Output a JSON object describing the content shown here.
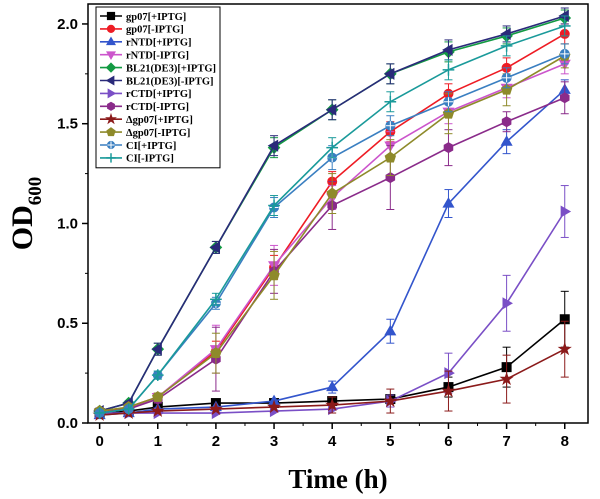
{
  "chart_data": {
    "type": "line",
    "xlabel": "Time (h)",
    "ylabel": "OD",
    "ylabel_subscript": "600",
    "xlim": [
      -0.2,
      8.4
    ],
    "ylim": [
      0,
      2.1
    ],
    "xticks": [
      0,
      1,
      2,
      3,
      4,
      5,
      6,
      7,
      8
    ],
    "yticks": [
      "0.0",
      "0.5",
      "1.0",
      "1.5",
      "2.0"
    ],
    "x": [
      0,
      0.5,
      1,
      2,
      3,
      4,
      5,
      6,
      7,
      8
    ],
    "legend_position": "top-left",
    "series": [
      {
        "name": "gp07[+IPTG]",
        "color": "#000000",
        "marker": "square",
        "values": [
          0.05,
          0.06,
          0.08,
          0.1,
          0.1,
          0.11,
          0.12,
          0.18,
          0.28,
          0.52
        ],
        "errors": [
          0,
          0,
          0,
          0,
          0,
          0,
          0,
          0.05,
          0.1,
          0.14
        ]
      },
      {
        "name": "gp07[-IPTG]",
        "color": "#ee1c24",
        "marker": "circle",
        "values": [
          0.05,
          0.08,
          0.13,
          0.36,
          0.78,
          1.21,
          1.46,
          1.65,
          1.78,
          1.95
        ],
        "errors": [
          0,
          0,
          0.02,
          0.05,
          0.06,
          0.05,
          0.05,
          0.05,
          0.05,
          0.05
        ]
      },
      {
        "name": "rNTD[+IPTG]",
        "color": "#3355cc",
        "marker": "triangle-up",
        "values": [
          0.04,
          0.05,
          0.07,
          0.08,
          0.11,
          0.18,
          0.46,
          1.1,
          1.41,
          1.67
        ],
        "errors": [
          0,
          0,
          0,
          0,
          0,
          0.03,
          0.06,
          0.07,
          0.06,
          0.05
        ]
      },
      {
        "name": "rNTD[-IPTG]",
        "color": "#cc55cc",
        "marker": "triangle-down",
        "values": [
          0.05,
          0.07,
          0.13,
          0.37,
          0.79,
          1.13,
          1.39,
          1.56,
          1.68,
          1.8
        ],
        "errors": [
          0,
          0,
          0.02,
          0.12,
          0.1,
          0.06,
          0.07,
          0.06,
          0.05,
          0.05
        ]
      },
      {
        "name": "BL21(DE3)[+IPTG]",
        "color": "#139a43",
        "marker": "diamond",
        "values": [
          0.06,
          0.1,
          0.37,
          0.88,
          1.38,
          1.57,
          1.75,
          1.86,
          1.94,
          2.03
        ],
        "errors": [
          0,
          0.01,
          0.03,
          0.03,
          0.05,
          0.05,
          0.05,
          0.05,
          0.04,
          0.04
        ]
      },
      {
        "name": "BL21(DE3)[-IPTG]",
        "color": "#2a2a7a",
        "marker": "triangle-left",
        "values": [
          0.06,
          0.1,
          0.37,
          0.88,
          1.39,
          1.57,
          1.75,
          1.87,
          1.95,
          2.04
        ],
        "errors": [
          0,
          0.01,
          0.03,
          0.03,
          0.05,
          0.05,
          0.05,
          0.05,
          0.04,
          0.04
        ]
      },
      {
        "name": "rCTD[+IPTG]",
        "color": "#7a4fc6",
        "marker": "triangle-right",
        "values": [
          0.05,
          0.05,
          0.05,
          0.05,
          0.06,
          0.07,
          0.11,
          0.25,
          0.6,
          1.06
        ],
        "errors": [
          0,
          0,
          0,
          0,
          0,
          0,
          0.03,
          0.1,
          0.14,
          0.13
        ]
      },
      {
        "name": "rCTD[-IPTG]",
        "color": "#8a2b8a",
        "marker": "hexagon",
        "values": [
          0.05,
          0.07,
          0.12,
          0.32,
          0.76,
          1.09,
          1.23,
          1.38,
          1.51,
          1.63
        ],
        "errors": [
          0,
          0,
          0.02,
          0.16,
          0.11,
          0.12,
          0.16,
          0.09,
          0.05,
          0.08
        ]
      },
      {
        "name": "Δgp07[+IPTG]",
        "color": "#8b1a1a",
        "marker": "star",
        "values": [
          0.04,
          0.05,
          0.06,
          0.07,
          0.08,
          0.09,
          0.11,
          0.16,
          0.22,
          0.37
        ],
        "errors": [
          0,
          0,
          0,
          0,
          0,
          0.04,
          0.06,
          0.1,
          0.12,
          0.14
        ]
      },
      {
        "name": "Δgp07[-IPTG]",
        "color": "#8e8a2a",
        "marker": "pentagon",
        "values": [
          0.06,
          0.08,
          0.13,
          0.35,
          0.74,
          1.15,
          1.33,
          1.55,
          1.67,
          1.84
        ],
        "errors": [
          0,
          0,
          0.02,
          0.1,
          0.12,
          0.1,
          0.09,
          0.1,
          0.08,
          0.06
        ]
      },
      {
        "name": "CI[+IPTG]",
        "color": "#3a7fc1",
        "marker": "circle-cross",
        "values": [
          0.05,
          0.07,
          0.24,
          0.6,
          1.08,
          1.33,
          1.49,
          1.61,
          1.73,
          1.85
        ],
        "errors": [
          0,
          0,
          0.02,
          0.03,
          0.05,
          0.06,
          0.05,
          0.05,
          0.05,
          0.05
        ]
      },
      {
        "name": "CI[-IPTG]",
        "color": "#1a9a9a",
        "marker": "plus",
        "values": [
          0.05,
          0.07,
          0.24,
          0.62,
          1.09,
          1.38,
          1.61,
          1.77,
          1.89,
          1.99
        ],
        "errors": [
          0,
          0,
          0.02,
          0.03,
          0.05,
          0.05,
          0.05,
          0.05,
          0.05,
          0.05
        ]
      }
    ]
  }
}
